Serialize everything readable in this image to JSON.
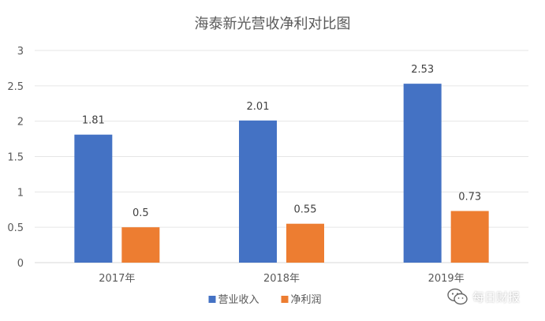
{
  "chart_data": {
    "type": "bar",
    "title": "海泰新光营收净利对比图",
    "categories": [
      "2017年",
      "2018年",
      "2019年"
    ],
    "series": [
      {
        "name": "营业收入",
        "color": "#4472C4",
        "values": [
          1.81,
          2.01,
          2.53
        ]
      },
      {
        "name": "净利润",
        "color": "#ED7D31",
        "values": [
          0.5,
          0.55,
          0.73
        ]
      }
    ],
    "ylim": [
      0,
      3
    ],
    "yticks": [
      "0",
      "0.5",
      "1",
      "1.5",
      "2",
      "2.5",
      "3"
    ],
    "grid": true,
    "legend_position": "bottom",
    "data_labels": true
  },
  "watermark": {
    "text": "每日财报",
    "icon": "wechat-icon"
  }
}
